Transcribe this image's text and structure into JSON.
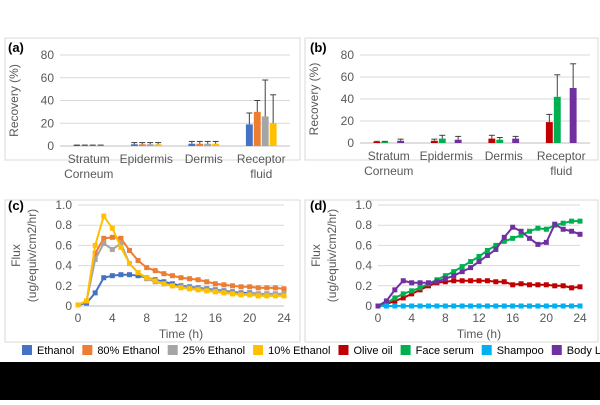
{
  "legend_items": [
    {
      "label": "Ethanol",
      "color": "#4472c4"
    },
    {
      "label": "80% Ethanol",
      "color": "#ed7d31"
    },
    {
      "label": "25% Ethanol",
      "color": "#a5a5a5"
    },
    {
      "label": "10% Ethanol",
      "color": "#ffc000"
    },
    {
      "label": "Olive oil",
      "color": "#c00000"
    },
    {
      "label": "Face serum",
      "color": "#00b050"
    },
    {
      "label": "Shampoo",
      "color": "#00b0f0"
    },
    {
      "label": "Body Lotion",
      "color": "#7030a0"
    }
  ],
  "chart_data": [
    {
      "panel_label": "(a)",
      "type": "bar",
      "categories": [
        [
          "Stratum",
          "Corneum"
        ],
        [
          "Epidermis"
        ],
        [
          "Dermis"
        ],
        [
          "Receptor",
          "fluid"
        ]
      ],
      "ylabel": "Recovery (%)",
      "ylim": [
        0,
        80
      ],
      "yticks": [
        "0",
        "20",
        "40",
        "60",
        "80"
      ],
      "series": [
        {
          "name": "Ethanol",
          "color": "#4472c4",
          "values": [
            0.5,
            1.5,
            2,
            19
          ],
          "errors": [
            0.3,
            1.5,
            2,
            10
          ]
        },
        {
          "name": "80% Ethanol",
          "color": "#ed7d31",
          "values": [
            0.5,
            1.5,
            2,
            30
          ],
          "errors": [
            0.3,
            1.5,
            2,
            10
          ]
        },
        {
          "name": "25% Ethanol",
          "color": "#a5a5a5",
          "values": [
            0.5,
            1.5,
            2,
            26
          ],
          "errors": [
            0.3,
            1.5,
            2,
            32
          ]
        },
        {
          "name": "10% Ethanol",
          "color": "#ffc000",
          "values": [
            0.5,
            1.5,
            2,
            20
          ],
          "errors": [
            0.3,
            1.5,
            2,
            25
          ]
        }
      ]
    },
    {
      "panel_label": "(b)",
      "type": "bar",
      "categories": [
        [
          "Stratum",
          "Corneum"
        ],
        [
          "Epidermis"
        ],
        [
          "Dermis"
        ],
        [
          "Receptor",
          "fluid"
        ]
      ],
      "ylabel": "Recovery (%)",
      "ylim": [
        0,
        80
      ],
      "yticks": [
        "0",
        "20",
        "40",
        "60",
        "80"
      ],
      "series": [
        {
          "name": "Olive oil",
          "color": "#c00000",
          "values": [
            1,
            2,
            4,
            19
          ],
          "errors": [
            0.5,
            1.5,
            3,
            7
          ]
        },
        {
          "name": "Face serum",
          "color": "#00b050",
          "values": [
            1,
            4,
            3,
            42
          ],
          "errors": [
            0.5,
            3,
            2,
            20
          ]
        },
        {
          "name": "Shampoo",
          "color": "#00b0f0",
          "values": [
            0,
            0,
            0,
            0
          ],
          "errors": [
            0,
            0,
            0,
            0
          ]
        },
        {
          "name": "Body Lotion",
          "color": "#7030a0",
          "values": [
            2,
            3,
            4,
            50
          ],
          "errors": [
            1.5,
            3,
            2,
            22
          ]
        }
      ]
    },
    {
      "panel_label": "(c)",
      "type": "line",
      "xlabel": "Time (h)",
      "ylabel": [
        "Flux",
        "(ug/equiv/cm2/hr)"
      ],
      "xlim": [
        0,
        24
      ],
      "ylim": [
        0,
        1.0
      ],
      "xticks": [
        "0",
        "4",
        "8",
        "12",
        "16",
        "20",
        "24"
      ],
      "yticks": [
        "0",
        "0.2",
        "0.4",
        "0.6",
        "0.8",
        "1.0"
      ],
      "x": [
        0,
        1,
        2,
        3,
        4,
        5,
        6,
        7,
        8,
        9,
        10,
        11,
        12,
        13,
        14,
        15,
        16,
        17,
        18,
        19,
        20,
        21,
        22,
        23,
        24
      ],
      "series": [
        {
          "name": "Ethanol",
          "color": "#4472c4",
          "marker": "square",
          "values": [
            0.01,
            0.03,
            0.13,
            0.28,
            0.3,
            0.31,
            0.31,
            0.3,
            0.28,
            0.26,
            0.24,
            0.22,
            0.2,
            0.19,
            0.18,
            0.17,
            0.16,
            0.15,
            0.14,
            0.13,
            0.13,
            0.12,
            0.12,
            0.12,
            0.12
          ]
        },
        {
          "name": "80% Ethanol",
          "color": "#ed7d31",
          "marker": "square",
          "values": [
            0.01,
            0.05,
            0.52,
            0.67,
            0.68,
            0.67,
            0.55,
            0.45,
            0.38,
            0.35,
            0.32,
            0.3,
            0.28,
            0.27,
            0.26,
            0.24,
            0.22,
            0.21,
            0.2,
            0.19,
            0.19,
            0.18,
            0.18,
            0.18,
            0.17
          ]
        },
        {
          "name": "25% Ethanol",
          "color": "#a5a5a5",
          "marker": "square",
          "values": [
            0.01,
            0.05,
            0.46,
            0.62,
            0.56,
            0.62,
            0.42,
            0.33,
            0.27,
            0.24,
            0.22,
            0.2,
            0.19,
            0.18,
            0.17,
            0.16,
            0.15,
            0.14,
            0.13,
            0.12,
            0.12,
            0.12,
            0.12,
            0.12,
            0.12
          ]
        },
        {
          "name": "10% Ethanol",
          "color": "#ffc000",
          "marker": "square",
          "values": [
            0.01,
            0.05,
            0.6,
            0.89,
            0.77,
            0.58,
            0.42,
            0.33,
            0.28,
            0.25,
            0.22,
            0.2,
            0.18,
            0.17,
            0.16,
            0.15,
            0.14,
            0.13,
            0.12,
            0.11,
            0.11,
            0.1,
            0.1,
            0.1,
            0.1
          ]
        }
      ]
    },
    {
      "panel_label": "(d)",
      "type": "line",
      "xlabel": "Time (h)",
      "ylabel": [
        "Flux",
        "(ug/equiv/cm2/hr)"
      ],
      "xlim": [
        0,
        24
      ],
      "ylim": [
        0,
        1.0
      ],
      "xticks": [
        "0",
        "4",
        "8",
        "12",
        "16",
        "20",
        "24"
      ],
      "yticks": [
        "0",
        "0.2",
        "0.4",
        "0.6",
        "0.8",
        "1.0"
      ],
      "x": [
        0,
        1,
        2,
        3,
        4,
        5,
        6,
        7,
        8,
        9,
        10,
        11,
        12,
        13,
        14,
        15,
        16,
        17,
        18,
        19,
        20,
        21,
        22,
        23,
        24
      ],
      "series": [
        {
          "name": "Olive oil",
          "color": "#c00000",
          "marker": "square",
          "values": [
            0.0,
            0.02,
            0.05,
            0.08,
            0.12,
            0.16,
            0.2,
            0.23,
            0.24,
            0.25,
            0.25,
            0.25,
            0.25,
            0.25,
            0.24,
            0.24,
            0.21,
            0.22,
            0.21,
            0.21,
            0.21,
            0.2,
            0.2,
            0.18,
            0.19
          ]
        },
        {
          "name": "Face serum",
          "color": "#00b050",
          "marker": "square",
          "values": [
            0.0,
            0.03,
            0.08,
            0.12,
            0.15,
            0.18,
            0.22,
            0.26,
            0.3,
            0.34,
            0.39,
            0.44,
            0.49,
            0.55,
            0.6,
            0.64,
            0.67,
            0.7,
            0.74,
            0.77,
            0.76,
            0.8,
            0.82,
            0.84,
            0.84
          ]
        },
        {
          "name": "Shampoo",
          "color": "#00b0f0",
          "marker": "square",
          "values": [
            0.0,
            0.0,
            0.0,
            0.0,
            0.0,
            0.0,
            0.0,
            0.0,
            0.0,
            0.0,
            0.0,
            0.0,
            0.0,
            0.0,
            0.0,
            0.0,
            0.0,
            0.0,
            0.0,
            0.0,
            0.0,
            0.0,
            0.0,
            0.0,
            0.0
          ]
        },
        {
          "name": "Body Lotion",
          "color": "#7030a0",
          "marker": "square",
          "values": [
            0.0,
            0.05,
            0.16,
            0.25,
            0.23,
            0.23,
            0.23,
            0.24,
            0.27,
            0.3,
            0.34,
            0.38,
            0.44,
            0.5,
            0.56,
            0.68,
            0.78,
            0.74,
            0.67,
            0.61,
            0.63,
            0.81,
            0.76,
            0.74,
            0.71
          ]
        }
      ]
    }
  ]
}
